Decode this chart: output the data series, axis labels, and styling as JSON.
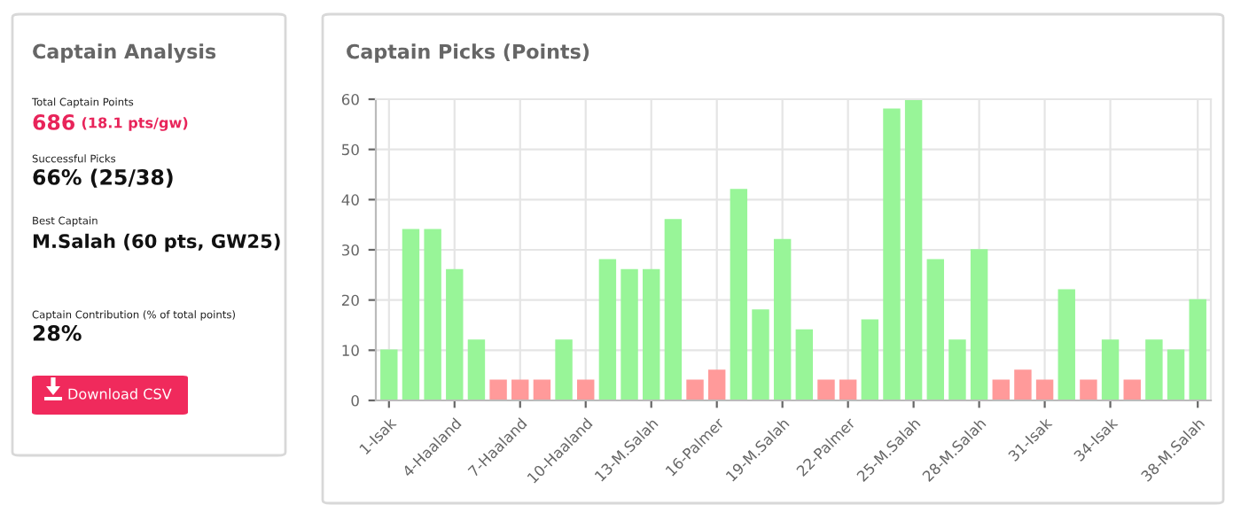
{
  "chart_data": [
    {
      "type": "other",
      "title": "Captain Analysis",
      "annotations": [
        "Total Captain Points",
        "686",
        "(18.1 pts/gw)",
        "Successful Picks",
        "66% (25/38)",
        "Best Captain",
        "M.Salah (60 pts, GW25)",
        "Captain Contribution (% of total points)",
        "28%",
        "Download CSV"
      ]
    },
    {
      "type": "bar",
      "title": "Captain Picks (Points)",
      "categories": [
        "1-Isak",
        null,
        null,
        "4-Haaland",
        null,
        null,
        "7-Haaland",
        null,
        null,
        "10-Haaland",
        null,
        null,
        "13-M.Salah",
        null,
        null,
        "16-Palmer",
        null,
        null,
        "19-M.Salah",
        null,
        null,
        "22-Palmer",
        null,
        null,
        "25-M.Salah",
        null,
        null,
        "28-M.Salah",
        null,
        null,
        "31-Isak",
        null,
        null,
        "34-Isak",
        null,
        null,
        null,
        "38-M.Salah"
      ],
      "values": [
        10,
        34,
        34,
        26,
        12,
        4,
        4,
        4,
        12,
        4,
        28,
        26,
        26,
        36,
        4,
        6,
        42,
        18,
        32,
        14,
        4,
        4,
        16,
        58,
        60,
        28,
        12,
        30,
        4,
        6,
        4,
        22,
        4,
        12,
        4,
        12,
        10,
        20
      ],
      "colors": [
        "#98f598",
        "#98f598",
        "#98f598",
        "#98f598",
        "#98f598",
        "#ff9a9a",
        "#ff9a9a",
        "#ff9a9a",
        "#98f598",
        "#ff9a9a",
        "#98f598",
        "#98f598",
        "#98f598",
        "#98f598",
        "#ff9a9a",
        "#ff9a9a",
        "#98f598",
        "#98f598",
        "#98f598",
        "#98f598",
        "#ff9a9a",
        "#ff9a9a",
        "#98f598",
        "#98f598",
        "#98f598",
        "#98f598",
        "#98f598",
        "#98f598",
        "#ff9a9a",
        "#ff9a9a",
        "#ff9a9a",
        "#98f598",
        "#ff9a9a",
        "#98f598",
        "#ff9a9a",
        "#98f598",
        "#98f598",
        "#98f598"
      ],
      "ylim": [
        0,
        60
      ],
      "yticks": [
        0,
        10,
        20,
        30,
        40,
        50,
        60
      ],
      "grid": true
    }
  ]
}
